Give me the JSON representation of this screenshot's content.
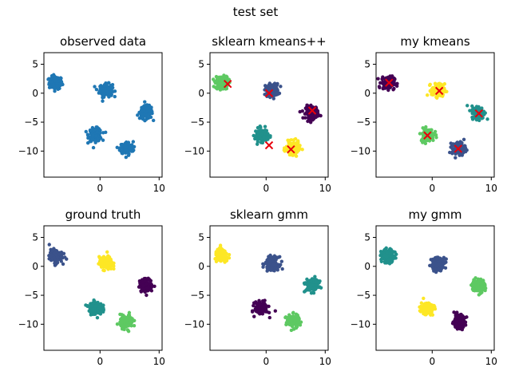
{
  "figure": {
    "title": "test set"
  },
  "colors": {
    "observed": "#1f77b4",
    "viridis": [
      "#440154",
      "#3b528b",
      "#21918c",
      "#5ec962",
      "#fde725"
    ],
    "centroid": "#e8000b"
  },
  "chart_data": [
    {
      "type": "scatter",
      "title": "observed data",
      "xlim": [
        -9.5,
        10.5
      ],
      "ylim": [
        -14.5,
        7
      ],
      "xticks": [
        0,
        10
      ],
      "yticks": [
        5,
        0,
        -5,
        -10
      ],
      "clusters": [
        {
          "center": [
            -7.5,
            1.8
          ],
          "color_index": null
        },
        {
          "center": [
            1.0,
            0.5
          ],
          "color_index": null
        },
        {
          "center": [
            7.8,
            -3.3
          ],
          "color_index": null
        },
        {
          "center": [
            -0.8,
            -7.2
          ],
          "color_index": null
        },
        {
          "center": [
            4.5,
            -9.5
          ],
          "color_index": null
        }
      ],
      "centroids": []
    },
    {
      "type": "scatter",
      "title": "sklearn kmeans++",
      "xlim": [
        -9.5,
        10.5
      ],
      "ylim": [
        -14.5,
        7
      ],
      "xticks": [
        0,
        10
      ],
      "yticks": [
        5,
        0,
        -5,
        -10
      ],
      "clusters": [
        {
          "center": [
            -7.5,
            1.8
          ],
          "color_index": 3
        },
        {
          "center": [
            1.0,
            0.5
          ],
          "color_index": 1
        },
        {
          "center": [
            7.8,
            -3.3
          ],
          "color_index": 0
        },
        {
          "center": [
            -0.8,
            -7.2
          ],
          "color_index": 2
        },
        {
          "center": [
            4.5,
            -9.5
          ],
          "color_index": 4
        }
      ],
      "centroids": [
        [
          -6.5,
          1.6
        ],
        [
          0.5,
          0.0
        ],
        [
          7.8,
          -3.0
        ],
        [
          0.5,
          -9.0
        ],
        [
          4.2,
          -9.7
        ]
      ]
    },
    {
      "type": "scatter",
      "title": "my kmeans",
      "xlim": [
        -9.5,
        10.5
      ],
      "ylim": [
        -14.5,
        7
      ],
      "xticks": [
        0,
        10
      ],
      "yticks": [
        5,
        0,
        -5,
        -10
      ],
      "clusters": [
        {
          "center": [
            -7.5,
            1.8
          ],
          "color_index": 0
        },
        {
          "center": [
            1.0,
            0.5
          ],
          "color_index": 4
        },
        {
          "center": [
            7.8,
            -3.3
          ],
          "color_index": 2
        },
        {
          "center": [
            -0.8,
            -7.2
          ],
          "color_index": 3
        },
        {
          "center": [
            4.5,
            -9.5
          ],
          "color_index": 1
        }
      ],
      "centroids": [
        [
          -7.3,
          1.8
        ],
        [
          1.2,
          0.4
        ],
        [
          7.9,
          -3.5
        ],
        [
          -0.8,
          -7.3
        ],
        [
          4.4,
          -9.6
        ]
      ]
    },
    {
      "type": "scatter",
      "title": "ground truth",
      "xlim": [
        -9.5,
        10.5
      ],
      "ylim": [
        -14.5,
        7
      ],
      "xticks": [
        0,
        10
      ],
      "yticks": [
        5,
        0,
        -5,
        -10
      ],
      "clusters": [
        {
          "center": [
            -7.5,
            1.8
          ],
          "color_index": 1
        },
        {
          "center": [
            1.0,
            0.5
          ],
          "color_index": 4
        },
        {
          "center": [
            7.8,
            -3.3
          ],
          "color_index": 0
        },
        {
          "center": [
            -0.8,
            -7.2
          ],
          "color_index": 2
        },
        {
          "center": [
            4.5,
            -9.5
          ],
          "color_index": 3
        }
      ],
      "centroids": []
    },
    {
      "type": "scatter",
      "title": "sklearn gmm",
      "xlim": [
        -9.5,
        10.5
      ],
      "ylim": [
        -14.5,
        7
      ],
      "xticks": [
        0,
        10
      ],
      "yticks": [
        5,
        0,
        -5,
        -10
      ],
      "clusters": [
        {
          "center": [
            -7.5,
            1.8
          ],
          "color_index": 4
        },
        {
          "center": [
            1.0,
            0.5
          ],
          "color_index": 1
        },
        {
          "center": [
            7.8,
            -3.3
          ],
          "color_index": 2
        },
        {
          "center": [
            -0.8,
            -7.2
          ],
          "color_index": 0
        },
        {
          "center": [
            4.5,
            -9.5
          ],
          "color_index": 3
        }
      ],
      "centroids": []
    },
    {
      "type": "scatter",
      "title": "my gmm",
      "xlim": [
        -9.5,
        10.5
      ],
      "ylim": [
        -14.5,
        7
      ],
      "xticks": [
        0,
        10
      ],
      "yticks": [
        5,
        0,
        -5,
        -10
      ],
      "clusters": [
        {
          "center": [
            -7.5,
            1.8
          ],
          "color_index": 2
        },
        {
          "center": [
            1.0,
            0.5
          ],
          "color_index": 1
        },
        {
          "center": [
            7.8,
            -3.3
          ],
          "color_index": 3
        },
        {
          "center": [
            -0.8,
            -7.2
          ],
          "color_index": 4
        },
        {
          "center": [
            4.5,
            -9.5
          ],
          "color_index": 0
        }
      ],
      "centroids": []
    }
  ]
}
